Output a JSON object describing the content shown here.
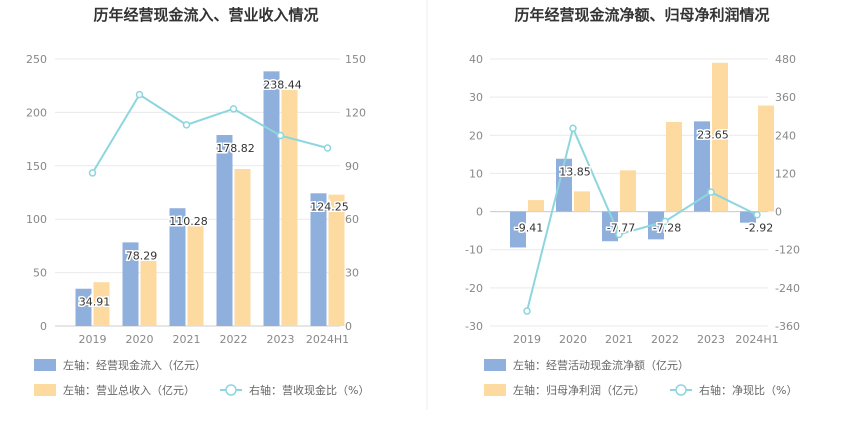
{
  "chart_data": [
    {
      "id": "left",
      "type": "bar",
      "title": "历年经营现金流入、营业收入情况",
      "categories": [
        "2019",
        "2020",
        "2021",
        "2022",
        "2023",
        "2024H1"
      ],
      "left_axis": {
        "min": 0,
        "max": 250,
        "ticks": [
          "0",
          "50",
          "100",
          "150",
          "200",
          "250"
        ]
      },
      "right_axis": {
        "min": 0,
        "max": 150,
        "ticks": [
          "0",
          "30",
          "60",
          "90",
          "120",
          "150"
        ]
      },
      "series": [
        {
          "name": "左轴：经营现金流入（亿元）",
          "type": "bar",
          "axis": "left",
          "color": "#8fb0dc",
          "values": [
            34.91,
            78.29,
            110.28,
            178.82,
            238.44,
            124.25
          ],
          "labels": [
            "34.91",
            "78.29",
            "110.28",
            "178.82",
            "238.44",
            "124.25"
          ]
        },
        {
          "name": "左轴：营业总收入（亿元）",
          "type": "bar",
          "axis": "left",
          "color": "#fddaa0",
          "values": [
            41,
            61,
            97,
            147,
            221,
            123
          ]
        },
        {
          "name": "右轴：营收现金比（%）",
          "type": "line",
          "axis": "right",
          "color": "#8dd6de",
          "values": [
            86,
            130,
            113,
            122,
            107,
            100
          ]
        }
      ]
    },
    {
      "id": "right",
      "type": "bar",
      "title": "历年经营现金流净额、归母净利润情况",
      "categories": [
        "2019",
        "2020",
        "2021",
        "2022",
        "2023",
        "2024H1"
      ],
      "left_axis": {
        "min": -30,
        "max": 40,
        "ticks": [
          "-30",
          "-20",
          "-10",
          "0",
          "10",
          "20",
          "30",
          "40"
        ]
      },
      "right_axis": {
        "min": -360,
        "max": 480,
        "ticks": [
          "-360",
          "-240",
          "-120",
          "0",
          "120",
          "240",
          "360",
          "480"
        ]
      },
      "series": [
        {
          "name": "左轴：经营活动现金流净额（亿元）",
          "type": "bar",
          "axis": "left",
          "color": "#8fb0dc",
          "values": [
            -9.41,
            13.85,
            -7.77,
            -7.28,
            23.65,
            -2.92
          ],
          "labels": [
            "-9.41",
            "13.85",
            "-7.77",
            "-7.28",
            "23.65",
            "-2.92"
          ]
        },
        {
          "name": "左轴：归母净利润（亿元）",
          "type": "bar",
          "axis": "left",
          "color": "#fddaa0",
          "values": [
            3,
            5.3,
            10.8,
            23.5,
            39,
            27.8
          ]
        },
        {
          "name": "右轴：净现比（%）",
          "type": "line",
          "axis": "right",
          "color": "#8dd6de",
          "values": [
            -313,
            262,
            -72,
            -31,
            61,
            -10
          ]
        }
      ]
    }
  ]
}
